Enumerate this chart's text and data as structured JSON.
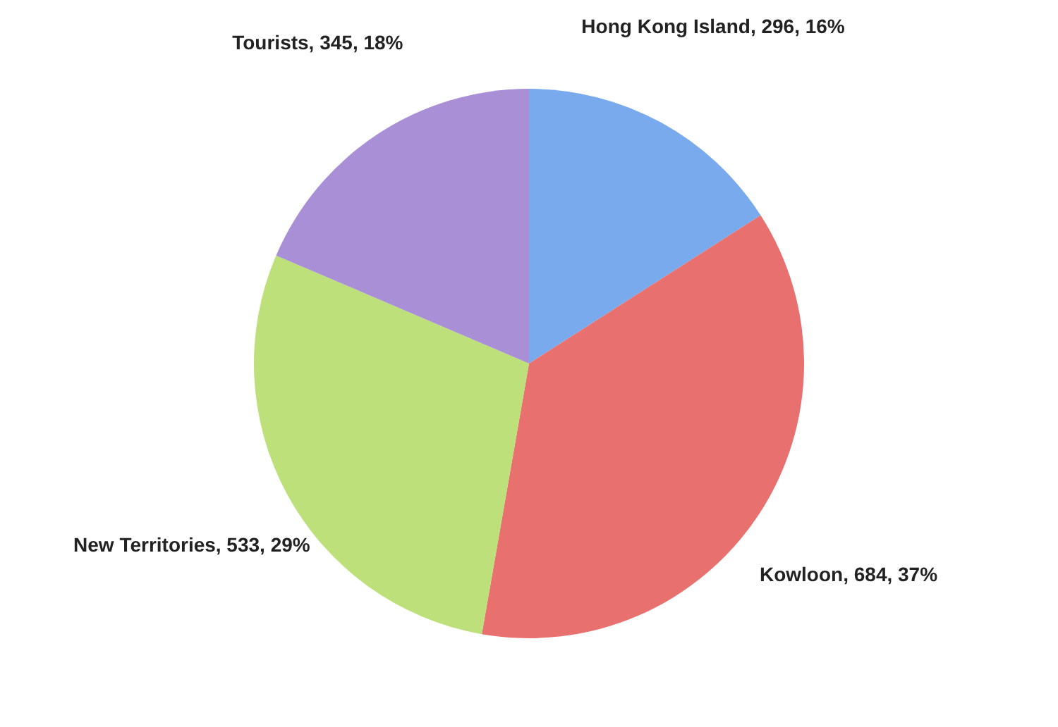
{
  "chart_data": {
    "type": "pie",
    "categories": [
      "Hong Kong Island",
      "Kowloon",
      "New Territories",
      "Tourists"
    ],
    "values": [
      296,
      684,
      533,
      345
    ],
    "value_labels": [
      "296, 16%",
      "684, 37%",
      "533, 29%",
      "345, 18%"
    ],
    "colors": [
      "#7aaaee",
      "#e8706e",
      "#bde07a",
      "#a98fd6"
    ],
    "legend": false
  }
}
